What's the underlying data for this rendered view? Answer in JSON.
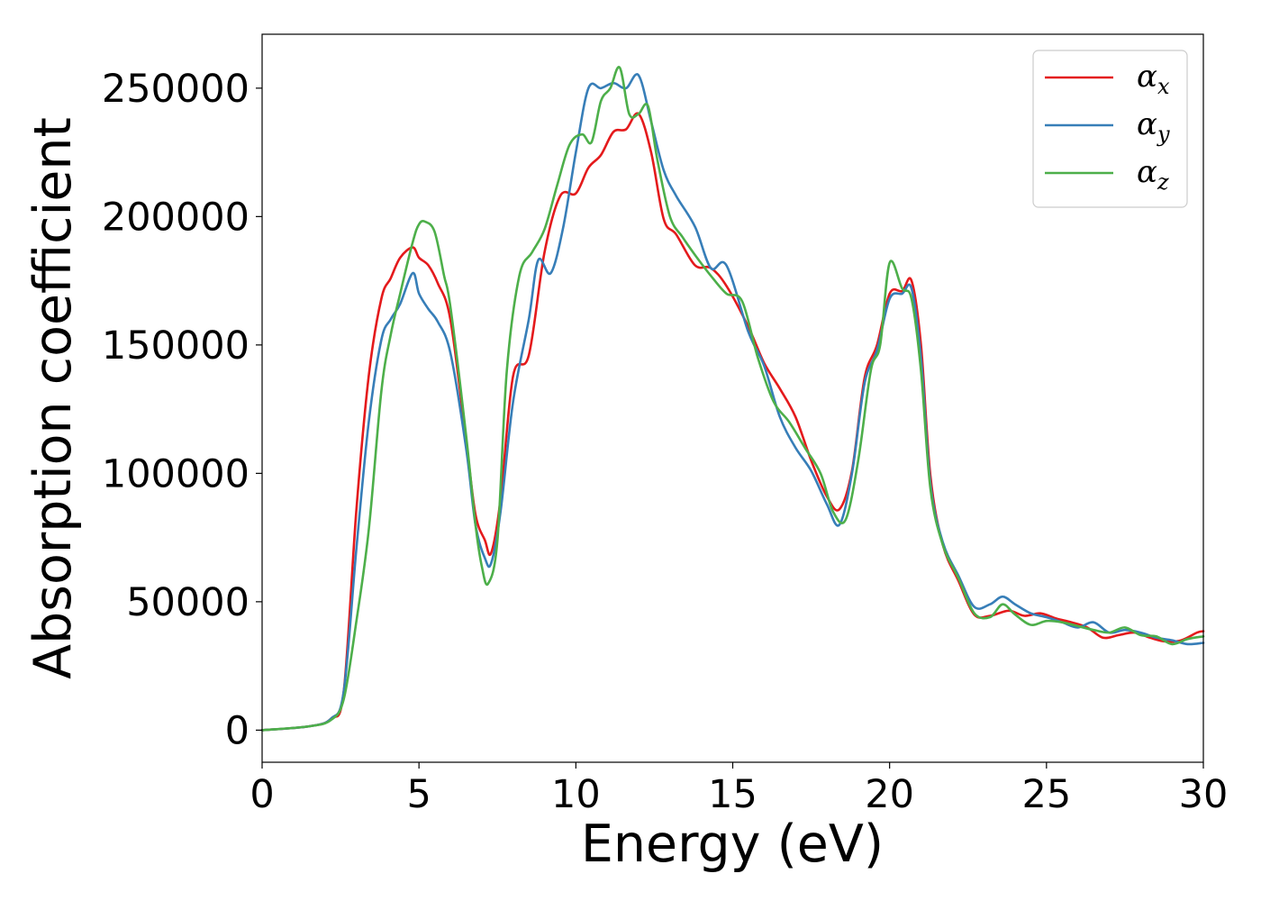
{
  "chart_data": {
    "type": "line",
    "xlabel": "Energy (eV)",
    "ylabel": "Absorption coefficient",
    "xlim": [
      0,
      30
    ],
    "ylim": [
      -12500,
      271000
    ],
    "xticks": [
      0,
      5,
      10,
      15,
      20,
      25,
      30
    ],
    "yticks": [
      0,
      50000,
      100000,
      150000,
      200000,
      250000
    ],
    "legend_position": "top-right",
    "grid": false,
    "series": [
      {
        "name": "α",
        "subscript": "x",
        "color": "#e41a1c",
        "x": [
          0,
          1.5,
          2.2,
          2.6,
          3.0,
          3.4,
          3.8,
          4.1,
          4.4,
          4.8,
          5.0,
          5.3,
          5.6,
          6.0,
          6.5,
          6.8,
          7.1,
          7.3,
          7.6,
          8.0,
          8.5,
          9.0,
          9.5,
          10.0,
          10.4,
          10.8,
          11.2,
          11.6,
          12.0,
          12.4,
          12.8,
          13.2,
          13.8,
          14.3,
          14.8,
          15.5,
          16.0,
          16.5,
          17.0,
          17.5,
          18.0,
          18.4,
          18.8,
          19.2,
          19.6,
          20.0,
          20.4,
          20.7,
          21.0,
          21.3,
          21.7,
          22.2,
          22.7,
          23.2,
          23.8,
          24.3,
          24.8,
          25.3,
          25.8,
          26.3,
          26.8,
          27.3,
          27.8,
          28.3,
          28.8,
          29.3,
          29.8,
          30.0
        ],
        "y": [
          0,
          1500,
          4500,
          15000,
          85000,
          138000,
          168000,
          176000,
          184000,
          188000,
          184000,
          181000,
          174000,
          160000,
          113000,
          84000,
          74000,
          69000,
          90000,
          138000,
          146000,
          186000,
          208000,
          209000,
          219000,
          224000,
          233000,
          234000,
          240000,
          225000,
          199000,
          193000,
          181000,
          180000,
          173000,
          157000,
          143000,
          133000,
          122000,
          105000,
          91000,
          86000,
          101000,
          137000,
          150000,
          170000,
          171000,
          175000,
          150000,
          99000,
          72000,
          58000,
          45000,
          44500,
          46500,
          44500,
          45500,
          43500,
          42000,
          40000,
          36000,
          37000,
          38000,
          36000,
          34500,
          35000,
          38000,
          38500
        ]
      },
      {
        "name": "α",
        "subscript": "y",
        "color": "#377eb8",
        "x": [
          0,
          1.5,
          2.2,
          2.6,
          3.0,
          3.4,
          3.8,
          4.1,
          4.4,
          4.8,
          5.0,
          5.3,
          5.6,
          6.0,
          6.5,
          6.8,
          7.1,
          7.3,
          7.6,
          8.0,
          8.5,
          8.8,
          9.2,
          9.6,
          10.0,
          10.4,
          10.8,
          11.2,
          11.6,
          12.0,
          12.4,
          12.8,
          13.2,
          13.8,
          14.3,
          14.8,
          15.5,
          16.0,
          16.5,
          17.0,
          17.5,
          18.0,
          18.4,
          18.8,
          19.2,
          19.6,
          20.0,
          20.4,
          20.7,
          21.0,
          21.3,
          21.7,
          22.2,
          22.7,
          23.2,
          23.6,
          24.0,
          24.5,
          25.0,
          25.5,
          26.0,
          26.5,
          27.0,
          27.5,
          28.0,
          28.5,
          29.0,
          29.5,
          30.0
        ],
        "y": [
          0,
          1500,
          4500,
          15000,
          70000,
          120000,
          152000,
          160000,
          166000,
          178000,
          170000,
          164000,
          159000,
          147000,
          110000,
          80000,
          67000,
          65000,
          85000,
          128000,
          160000,
          183000,
          178000,
          196000,
          225000,
          250000,
          250000,
          252000,
          250000,
          255000,
          237000,
          218000,
          208000,
          196000,
          180000,
          181000,
          155000,
          142000,
          122000,
          110000,
          101000,
          88000,
          80000,
          100000,
          135000,
          148000,
          168000,
          170000,
          172000,
          145000,
          96000,
          73000,
          60000,
          48000,
          49000,
          52000,
          49000,
          45500,
          44000,
          42000,
          40000,
          42000,
          38000,
          39000,
          38000,
          36000,
          35000,
          33500,
          34000
        ]
      },
      {
        "name": "α",
        "subscript": "z",
        "color": "#4daf4a",
        "x": [
          0,
          1.5,
          2.2,
          2.6,
          3.0,
          3.4,
          3.8,
          4.1,
          4.4,
          4.8,
          5.0,
          5.2,
          5.5,
          5.8,
          6.0,
          6.5,
          6.8,
          7.0,
          7.2,
          7.5,
          7.8,
          8.2,
          8.6,
          9.0,
          9.4,
          9.8,
          10.2,
          10.5,
          10.8,
          11.1,
          11.4,
          11.7,
          12.0,
          12.3,
          12.6,
          13.0,
          13.4,
          13.8,
          14.3,
          14.8,
          15.3,
          15.8,
          16.3,
          16.8,
          17.3,
          17.8,
          18.2,
          18.6,
          19.0,
          19.4,
          19.7,
          20.0,
          20.4,
          20.7,
          21.0,
          21.3,
          21.7,
          22.2,
          22.7,
          23.2,
          23.6,
          24.0,
          24.5,
          25.0,
          25.5,
          26.0,
          26.5,
          27.0,
          27.5,
          28.0,
          28.5,
          29.0,
          29.5,
          30.0
        ],
        "y": [
          0,
          1500,
          4000,
          12000,
          42000,
          78000,
          132000,
          154000,
          170000,
          190000,
          197000,
          198000,
          194000,
          177000,
          165000,
          115000,
          80000,
          64000,
          57000,
          74000,
          140000,
          177000,
          186000,
          195000,
          212000,
          228000,
          232000,
          229000,
          245000,
          250000,
          258000,
          240000,
          240000,
          243000,
          222000,
          200000,
          192000,
          185000,
          177000,
          170000,
          167000,
          145000,
          128000,
          120000,
          110000,
          100000,
          85000,
          82000,
          105000,
          140000,
          150000,
          182000,
          172000,
          168000,
          140000,
          94000,
          72000,
          59000,
          45500,
          44000,
          49000,
          45000,
          41000,
          42500,
          42000,
          40500,
          39000,
          38000,
          40000,
          37000,
          36500,
          33500,
          35500,
          36500
        ]
      }
    ]
  }
}
